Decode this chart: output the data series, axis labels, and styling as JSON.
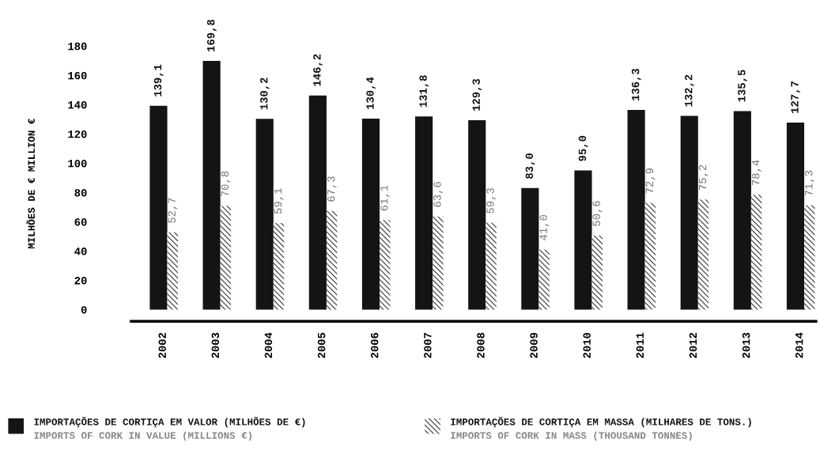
{
  "chart_data": {
    "type": "bar",
    "ylabel": "MILHÕES DE € MILLION €",
    "categories": [
      "2002",
      "2003",
      "2004",
      "2005",
      "2006",
      "2007",
      "2008",
      "2009",
      "2010",
      "2011",
      "2012",
      "2013",
      "2014"
    ],
    "series": [
      {
        "name": "IMPORTAÇÕES DE CORTIÇA EM VALOR (MILHÕES DE €)\nIMPORTS OF CORK IN VALUE (MILLIONS €)",
        "color": "#141414",
        "values": [
          139.1,
          169.8,
          130.2,
          146.2,
          130.4,
          131.8,
          129.3,
          83.0,
          95.0,
          136.3,
          132.2,
          135.5,
          127.7
        ],
        "value_labels": [
          "139,1",
          "169,8",
          "130,2",
          "146,2",
          "130,4",
          "131,8",
          "129,3",
          "83,0",
          "95,0",
          "136,3",
          "132,2",
          "135,5",
          "127,7"
        ]
      },
      {
        "name": "IMPORTAÇÕES DE CORTIÇA EM MASSA (MILHARES DE TONS.)\nIMPORTS OF CORK IN MASS (THOUSAND TONNES)",
        "color": "#333333",
        "values": [
          52.7,
          70.8,
          59.1,
          67.3,
          61.1,
          63.6,
          59.3,
          41.0,
          50.6,
          72.9,
          75.2,
          78.4,
          71.3
        ],
        "value_labels": [
          "52,7",
          "70,8",
          "59,1",
          "67,3",
          "61,1",
          "63,6",
          "59,3",
          "41,0",
          "50,6",
          "72,9",
          "75,2",
          "78,4",
          "71,3"
        ]
      }
    ],
    "ylim": [
      -8,
      180
    ],
    "yticks": [
      0,
      20,
      40,
      60,
      80,
      100,
      120,
      140,
      160,
      180
    ],
    "grid": false,
    "legend": "bottom"
  }
}
